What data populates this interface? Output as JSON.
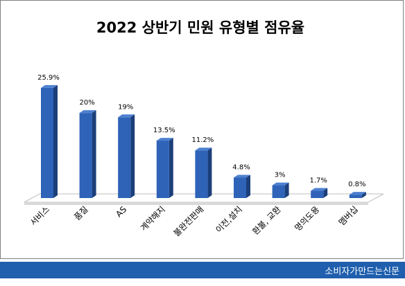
{
  "chart_data": {
    "type": "bar",
    "title": "2022 상반기 민원 유형별 점유율",
    "xlabel": "",
    "ylabel": "",
    "categories": [
      "서비스",
      "품질",
      "AS",
      "계약해지",
      "불완전판매",
      "이전,설치",
      "환불, 교환",
      "명의도용",
      "멤버십"
    ],
    "values": [
      25.9,
      20,
      19,
      13.5,
      11.2,
      4.8,
      3,
      1.7,
      0.8
    ],
    "value_labels": [
      "25.9%",
      "20%",
      "19%",
      "13.5%",
      "11.2%",
      "4.8%",
      "3%",
      "1.7%",
      "0.8%"
    ],
    "ylim": [
      0,
      28
    ],
    "grid": false,
    "legend": "none",
    "bar_color": "#2e63b8",
    "bar_side_color": "#1c3f7a",
    "bar_top_color": "#4d80d0",
    "floor_color": "#ffffff"
  },
  "footer": {
    "text": "소비자가만드는신문",
    "color": "#1f5fae"
  }
}
